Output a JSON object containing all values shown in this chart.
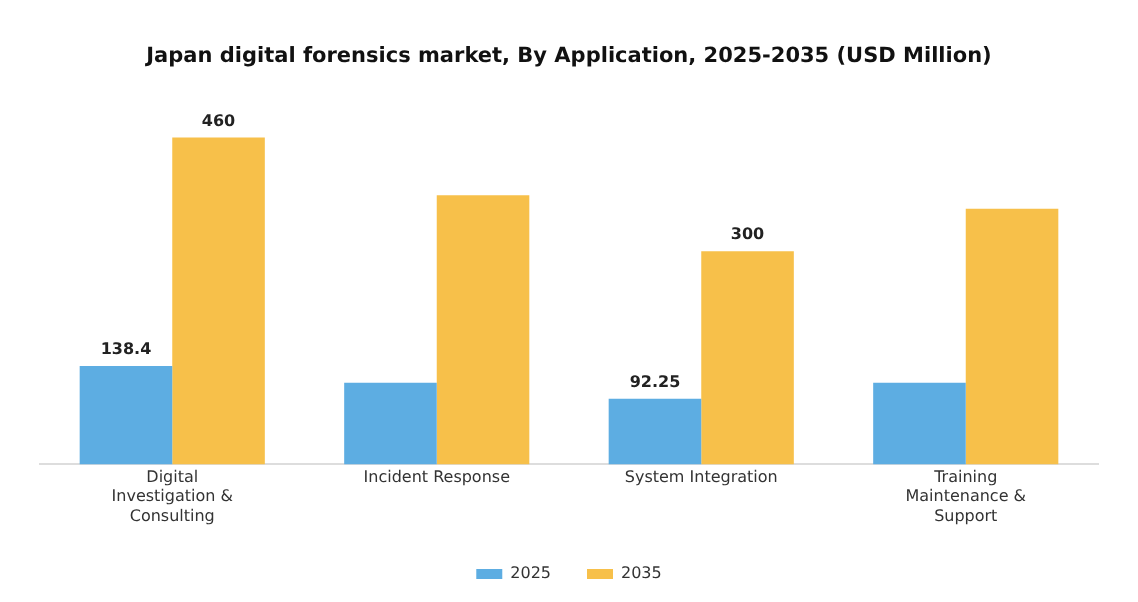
{
  "chart_data": {
    "type": "bar",
    "title": "Japan digital forensics market, By Application, 2025-2035 (USD Million)",
    "categories": [
      "Digital Investigation & Consulting",
      "Incident Response",
      "System Integration",
      "Training Maintenance & Support"
    ],
    "series": [
      {
        "name": "2025",
        "color": "#5dade2",
        "values": [
          138.4,
          115,
          92.25,
          115
        ],
        "value_labels": [
          "138.4",
          null,
          "92.25",
          null
        ]
      },
      {
        "name": "2035",
        "color": "#f7c04a",
        "values": [
          460,
          379,
          300,
          360
        ],
        "value_labels": [
          "460",
          null,
          "300",
          null
        ]
      }
    ],
    "tick_labels": "x",
    "grid": false,
    "legend": "bottom"
  }
}
